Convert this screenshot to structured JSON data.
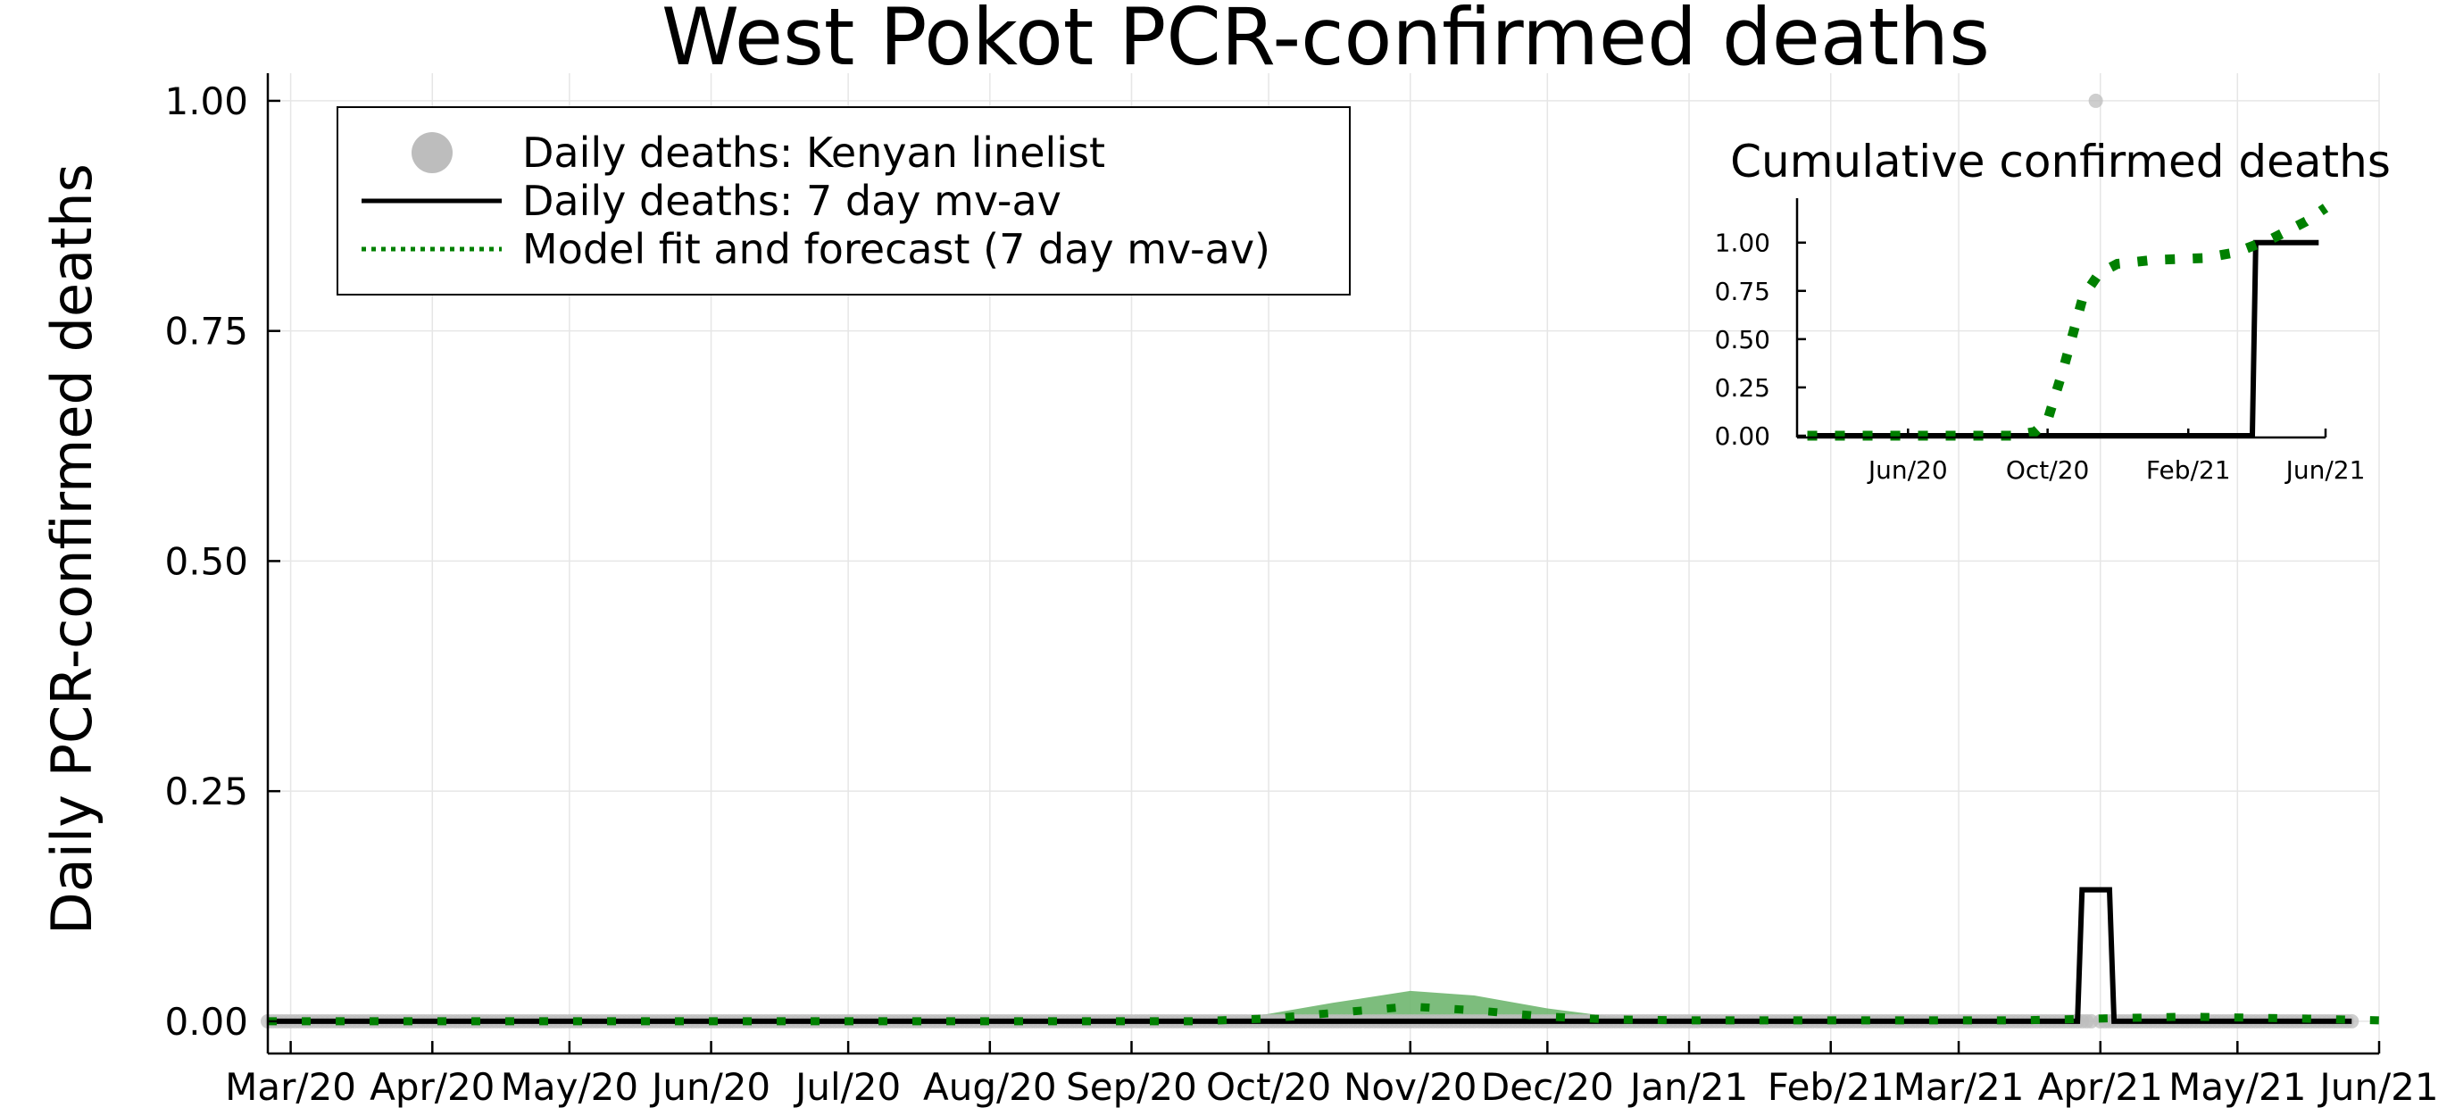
{
  "chart_data": [
    {
      "type": "line",
      "title": "West Pokot PCR-confirmed deaths",
      "ylabel": "Daily PCR-confirmed deaths",
      "xlabel": "",
      "x_range": [
        "2020-02-25",
        "2021-06-01"
      ],
      "ylim": [
        -0.035,
        1.03
      ],
      "y_ticks": [
        0.0,
        0.25,
        0.5,
        0.75,
        1.0
      ],
      "y_tick_labels": [
        "0.00",
        "0.25",
        "0.50",
        "0.75",
        "1.00"
      ],
      "x_ticks": [
        "2020-03-01",
        "2020-04-01",
        "2020-05-01",
        "2020-06-01",
        "2020-07-01",
        "2020-08-01",
        "2020-09-01",
        "2020-10-01",
        "2020-11-01",
        "2020-12-01",
        "2021-01-01",
        "2021-02-01",
        "2021-03-01",
        "2021-04-01",
        "2021-05-01",
        "2021-06-01"
      ],
      "x_tick_labels": [
        "Mar/20",
        "Apr/20",
        "May/20",
        "Jun/20",
        "Jul/20",
        "Aug/20",
        "Sep/20",
        "Oct/20",
        "Nov/20",
        "Dec/20",
        "Jan/21",
        "Feb/21",
        "Mar/21",
        "Apr/21",
        "May/21",
        "Jun/21"
      ],
      "grid": true,
      "legend": "top-left",
      "colors": {
        "points": "#bdbdbd",
        "mvav": "#000000",
        "model": "#008000",
        "band": "#66b266"
      },
      "series": [
        {
          "name": "Daily deaths: Kenyan linelist",
          "kind": "points",
          "x_start": "2020-02-25",
          "x_end": "2021-05-26",
          "baseline_y": 0,
          "points": [
            {
              "x": "2021-03-31",
              "y": 1
            }
          ]
        },
        {
          "name": "Daily deaths: 7 day mv-av",
          "kind": "line",
          "points": [
            {
              "x": "2020-02-25",
              "y": 0
            },
            {
              "x": "2021-03-27",
              "y": 0
            },
            {
              "x": "2021-03-28",
              "y": 0.1429
            },
            {
              "x": "2021-04-03",
              "y": 0.1429
            },
            {
              "x": "2021-04-04",
              "y": 0
            },
            {
              "x": "2021-05-26",
              "y": 0
            }
          ]
        },
        {
          "name": "Model fit and forecast (7 day mv-av)",
          "kind": "dotted-line",
          "points": [
            {
              "x": "2020-02-25",
              "y": 0
            },
            {
              "x": "2020-09-15",
              "y": 0
            },
            {
              "x": "2020-10-01",
              "y": 0.003
            },
            {
              "x": "2020-10-15",
              "y": 0.009
            },
            {
              "x": "2020-11-01",
              "y": 0.016
            },
            {
              "x": "2020-11-15",
              "y": 0.012
            },
            {
              "x": "2020-12-01",
              "y": 0.005
            },
            {
              "x": "2020-12-15",
              "y": 0.002
            },
            {
              "x": "2021-01-01",
              "y": 0.001
            },
            {
              "x": "2021-03-15",
              "y": 0.001
            },
            {
              "x": "2021-04-01",
              "y": 0.003
            },
            {
              "x": "2021-04-20",
              "y": 0.005
            },
            {
              "x": "2021-05-15",
              "y": 0.003
            },
            {
              "x": "2021-06-01",
              "y": 0.001
            }
          ],
          "band_upper": [
            {
              "x": "2020-09-20",
              "y": 0
            },
            {
              "x": "2020-10-01",
              "y": 0.008
            },
            {
              "x": "2020-10-15",
              "y": 0.02
            },
            {
              "x": "2020-11-01",
              "y": 0.033
            },
            {
              "x": "2020-11-15",
              "y": 0.028
            },
            {
              "x": "2020-12-01",
              "y": 0.014
            },
            {
              "x": "2020-12-15",
              "y": 0.005
            },
            {
              "x": "2021-01-01",
              "y": 0
            }
          ]
        }
      ]
    },
    {
      "type": "line",
      "title": "Cumulative confirmed deaths",
      "xlabel": "",
      "ylabel": "",
      "x_range": [
        "2020-02-25",
        "2021-06-01"
      ],
      "ylim": [
        0,
        1.23
      ],
      "y_ticks": [
        0.0,
        0.25,
        0.5,
        0.75,
        1.0
      ],
      "y_tick_labels": [
        "0.00",
        "0.25",
        "0.50",
        "0.75",
        "1.00"
      ],
      "x_ticks": [
        "2020-06-01",
        "2020-10-01",
        "2021-02-01",
        "2021-06-01"
      ],
      "x_tick_labels": [
        "Jun/20",
        "Oct/20",
        "Feb/21",
        "Jun/21"
      ],
      "grid": false,
      "series": [
        {
          "kind": "line",
          "color": "#000000",
          "points": [
            {
              "x": "2020-03-05",
              "y": 0
            },
            {
              "x": "2021-03-29",
              "y": 0
            },
            {
              "x": "2021-04-01",
              "y": 1
            },
            {
              "x": "2021-05-26",
              "y": 1
            }
          ]
        },
        {
          "kind": "dotted-line",
          "color": "#008000",
          "points": [
            {
              "x": "2020-03-05",
              "y": 0
            },
            {
              "x": "2020-09-01",
              "y": 0
            },
            {
              "x": "2020-09-20",
              "y": 0.02
            },
            {
              "x": "2020-10-01",
              "y": 0.08
            },
            {
              "x": "2020-10-15",
              "y": 0.35
            },
            {
              "x": "2020-11-01",
              "y": 0.72
            },
            {
              "x": "2020-11-15",
              "y": 0.84
            },
            {
              "x": "2020-12-01",
              "y": 0.89
            },
            {
              "x": "2021-01-01",
              "y": 0.91
            },
            {
              "x": "2021-02-15",
              "y": 0.92
            },
            {
              "x": "2021-03-15",
              "y": 0.95
            },
            {
              "x": "2021-04-15",
              "y": 1.02
            },
            {
              "x": "2021-05-15",
              "y": 1.11
            },
            {
              "x": "2021-06-01",
              "y": 1.18
            }
          ]
        }
      ]
    }
  ]
}
